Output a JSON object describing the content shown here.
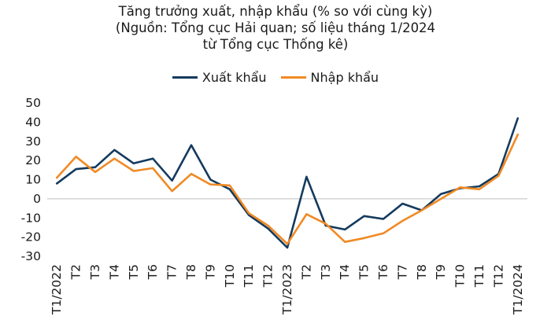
{
  "chart_data": {
    "type": "line",
    "title_lines": [
      "Tăng trưởng xuất, nhập khẩu (% so với cùng kỳ)",
      "(Nguồn: Tổng cục Hải quan; số liệu tháng 1/2024",
      "từ Tổng cục Thống kê)"
    ],
    "categories": [
      "T1/2022",
      "T2",
      "T3",
      "T4",
      "T5",
      "T6",
      "T7",
      "T8",
      "T9",
      "T10",
      "T11",
      "T12",
      "T1/2023",
      "T2",
      "T3",
      "T4",
      "T5",
      "T6",
      "T7",
      "T8",
      "T9",
      "T10",
      "T11",
      "T12",
      "T1/2024"
    ],
    "series": [
      {
        "name": "Xuất khẩu",
        "color": "#143a5e",
        "values": [
          8,
          15.5,
          16.5,
          25.5,
          18.5,
          21,
          9.5,
          28,
          10,
          5,
          -8.5,
          -15.5,
          -25.5,
          11.5,
          -14,
          -16,
          -9,
          -10.5,
          -2.5,
          -6,
          2.5,
          5.5,
          6.5,
          13,
          42
        ]
      },
      {
        "name": "Nhập khẩu",
        "color": "#f08a24",
        "values": [
          11,
          22,
          14,
          21,
          14.5,
          16,
          4,
          13,
          7.5,
          7,
          -7.5,
          -14,
          -23.5,
          -8,
          -13,
          -22.5,
          -20.5,
          -18,
          -11.5,
          -6,
          0,
          6,
          5,
          12,
          33.5
        ]
      }
    ],
    "ylim": [
      -30,
      50
    ],
    "yticks": [
      -30,
      -20,
      -10,
      0,
      10,
      20,
      30,
      40,
      50
    ],
    "legend_position": "top-center",
    "grid": false
  }
}
